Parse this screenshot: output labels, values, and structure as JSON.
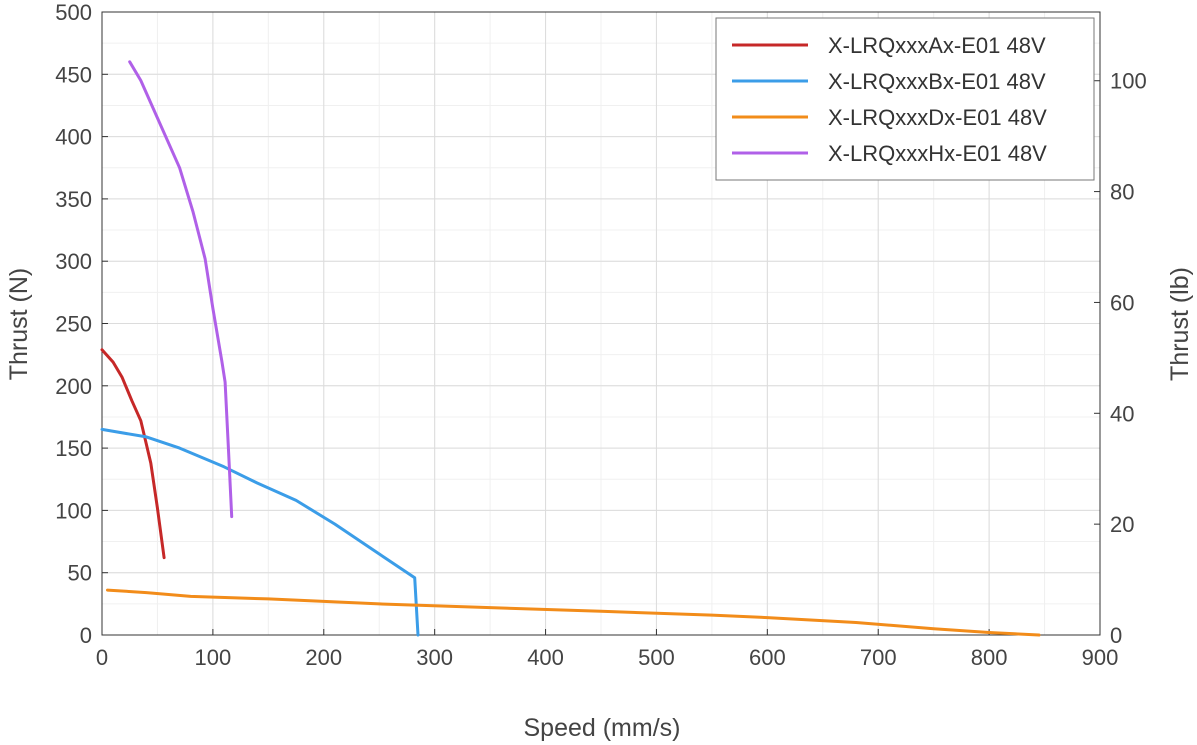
{
  "chart_data": {
    "type": "line",
    "title": "",
    "xlabel": "Speed (mm/s)",
    "ylabel": "Thrust (N)",
    "ylabel_right": "Thrust (lb)",
    "xlim": [
      0,
      900
    ],
    "ylim": [
      0,
      500
    ],
    "ylim_right": [
      0,
      112.4
    ],
    "x_ticks": [
      0,
      100,
      200,
      300,
      400,
      500,
      600,
      700,
      800,
      900
    ],
    "y_ticks": [
      0,
      50,
      100,
      150,
      200,
      250,
      300,
      350,
      400,
      450,
      500
    ],
    "y_ticks_right": [
      0,
      20,
      40,
      60,
      80,
      100
    ],
    "x_minor_step": 50,
    "y_minor_step": 25,
    "grid": true,
    "legend": "top-right",
    "series": [
      {
        "name": "X-LRQxxxAx-E01 48V",
        "color": "#c62828",
        "points": [
          [
            0,
            229
          ],
          [
            10,
            219
          ],
          [
            18,
            207
          ],
          [
            27,
            188
          ],
          [
            35,
            172
          ],
          [
            44,
            138
          ],
          [
            50,
            102
          ],
          [
            56,
            62
          ]
        ]
      },
      {
        "name": "X-LRQxxxBx-E01 48V",
        "color": "#3b9de8",
        "points": [
          [
            0,
            165
          ],
          [
            40,
            159
          ],
          [
            70,
            150
          ],
          [
            110,
            135
          ],
          [
            140,
            122
          ],
          [
            175,
            108
          ],
          [
            210,
            89
          ],
          [
            245,
            68
          ],
          [
            282,
            46
          ],
          [
            285,
            0
          ]
        ]
      },
      {
        "name": "X-LRQxxxDx-E01 48V",
        "color": "#f28c1a",
        "points": [
          [
            5,
            36
          ],
          [
            40,
            34
          ],
          [
            80,
            31
          ],
          [
            150,
            29
          ],
          [
            250,
            25
          ],
          [
            350,
            22
          ],
          [
            450,
            19
          ],
          [
            550,
            16
          ],
          [
            600,
            14
          ],
          [
            680,
            10
          ],
          [
            750,
            5
          ],
          [
            800,
            2
          ],
          [
            845,
            0
          ]
        ]
      },
      {
        "name": "X-LRQxxxHx-E01 48V",
        "color": "#b060e8",
        "points": [
          [
            25,
            460
          ],
          [
            35,
            445
          ],
          [
            50,
            415
          ],
          [
            70,
            375
          ],
          [
            82,
            340
          ],
          [
            93,
            302
          ],
          [
            100,
            262
          ],
          [
            108,
            220
          ],
          [
            111,
            203
          ],
          [
            114,
            150
          ],
          [
            117,
            95
          ]
        ]
      }
    ]
  }
}
